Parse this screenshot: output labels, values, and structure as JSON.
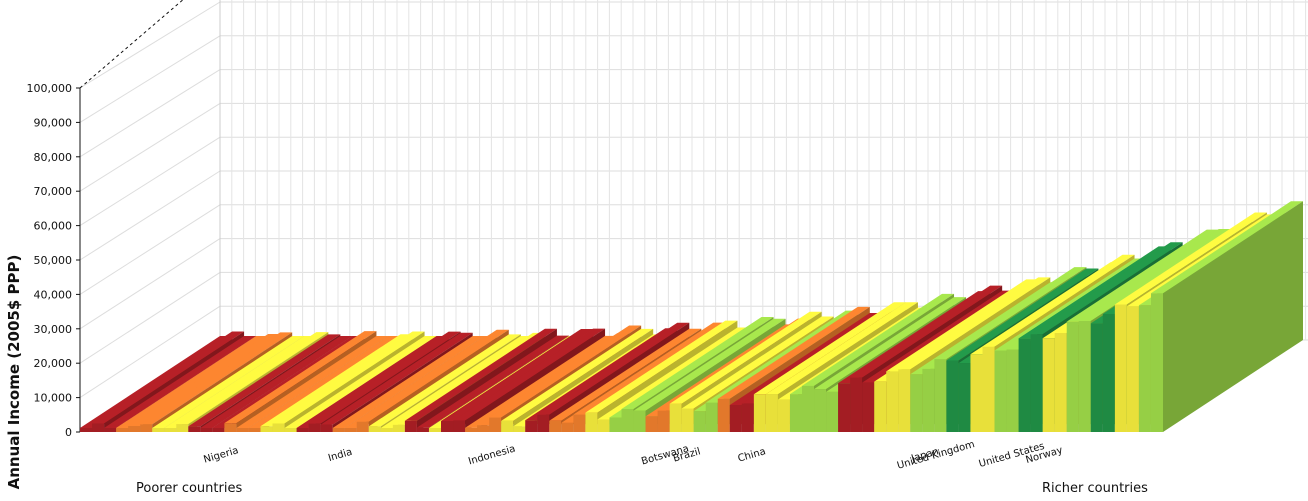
{
  "chart_data": {
    "type": "bar",
    "ylabel": "Annual Income (2005$ PPP)",
    "ylim": [
      0,
      100000
    ],
    "yticks": [
      "0",
      "10,000",
      "20,000",
      "30,000",
      "40,000",
      "50,000",
      "60,000",
      "70,000",
      "80,000",
      "90,000",
      "100,000"
    ],
    "grid": true,
    "group_labels": {
      "left": "Poorer countries",
      "right": "Richer countries"
    },
    "colors": {
      "poorest": "#a31d23",
      "low": "#e2782b",
      "mid": "#e8e03a",
      "upper": "#96cf45",
      "rich": "#1f8a43"
    },
    "countries": [
      {
        "name": "Nigeria",
        "population_position": 0.13,
        "income_level": 1000
      },
      {
        "name": "India",
        "population_position": 0.24,
        "income_level": 1200
      },
      {
        "name": "Indonesia",
        "population_position": 0.38,
        "income_level": 3000
      },
      {
        "name": "Botswana",
        "population_position": 0.54,
        "income_level": 9000
      },
      {
        "name": "Brazil",
        "population_position": 0.56,
        "income_level": 10000
      },
      {
        "name": "China",
        "population_position": 0.62,
        "income_level": 12000
      },
      {
        "name": "Japan",
        "population_position": 0.78,
        "income_level": 33000
      },
      {
        "name": "United Kingdom",
        "population_position": 0.79,
        "income_level": 34000
      },
      {
        "name": "United States",
        "population_position": 0.86,
        "income_level": 45000
      },
      {
        "name": "Norway",
        "population_position": 0.89,
        "income_level": 55000
      }
    ]
  }
}
